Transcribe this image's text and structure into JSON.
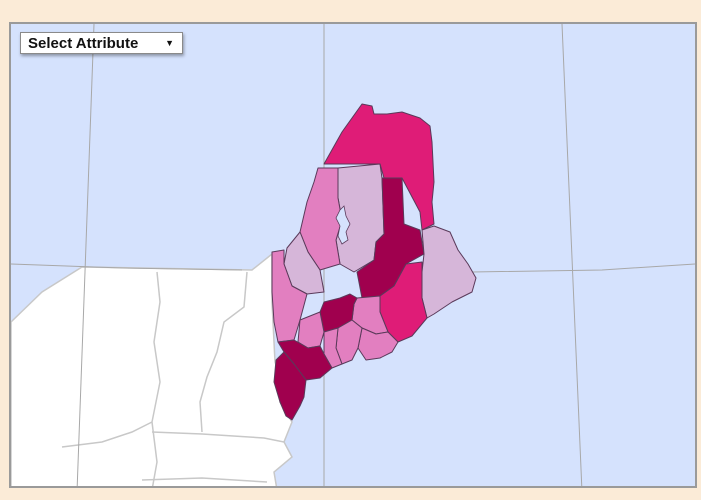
{
  "map": {
    "attribute_select": {
      "selected": "Select Attribute",
      "icon": "triangle-down-icon"
    },
    "colors": {
      "ocean": "#d5e2fd",
      "land_other": "#ffffff",
      "state_border": "#c8c8c8",
      "graticule": "#a8a8a8",
      "county_border": "#5a3a5a",
      "class_lightest": "#d6b6d9",
      "class_light": "#e27fc0",
      "class_medium": "#df3f92",
      "class_dark": "#df1c77",
      "class_darkest": "#a0004e",
      "page_background": "#fbebd7",
      "frame_border": "#9a9a9a"
    }
  }
}
